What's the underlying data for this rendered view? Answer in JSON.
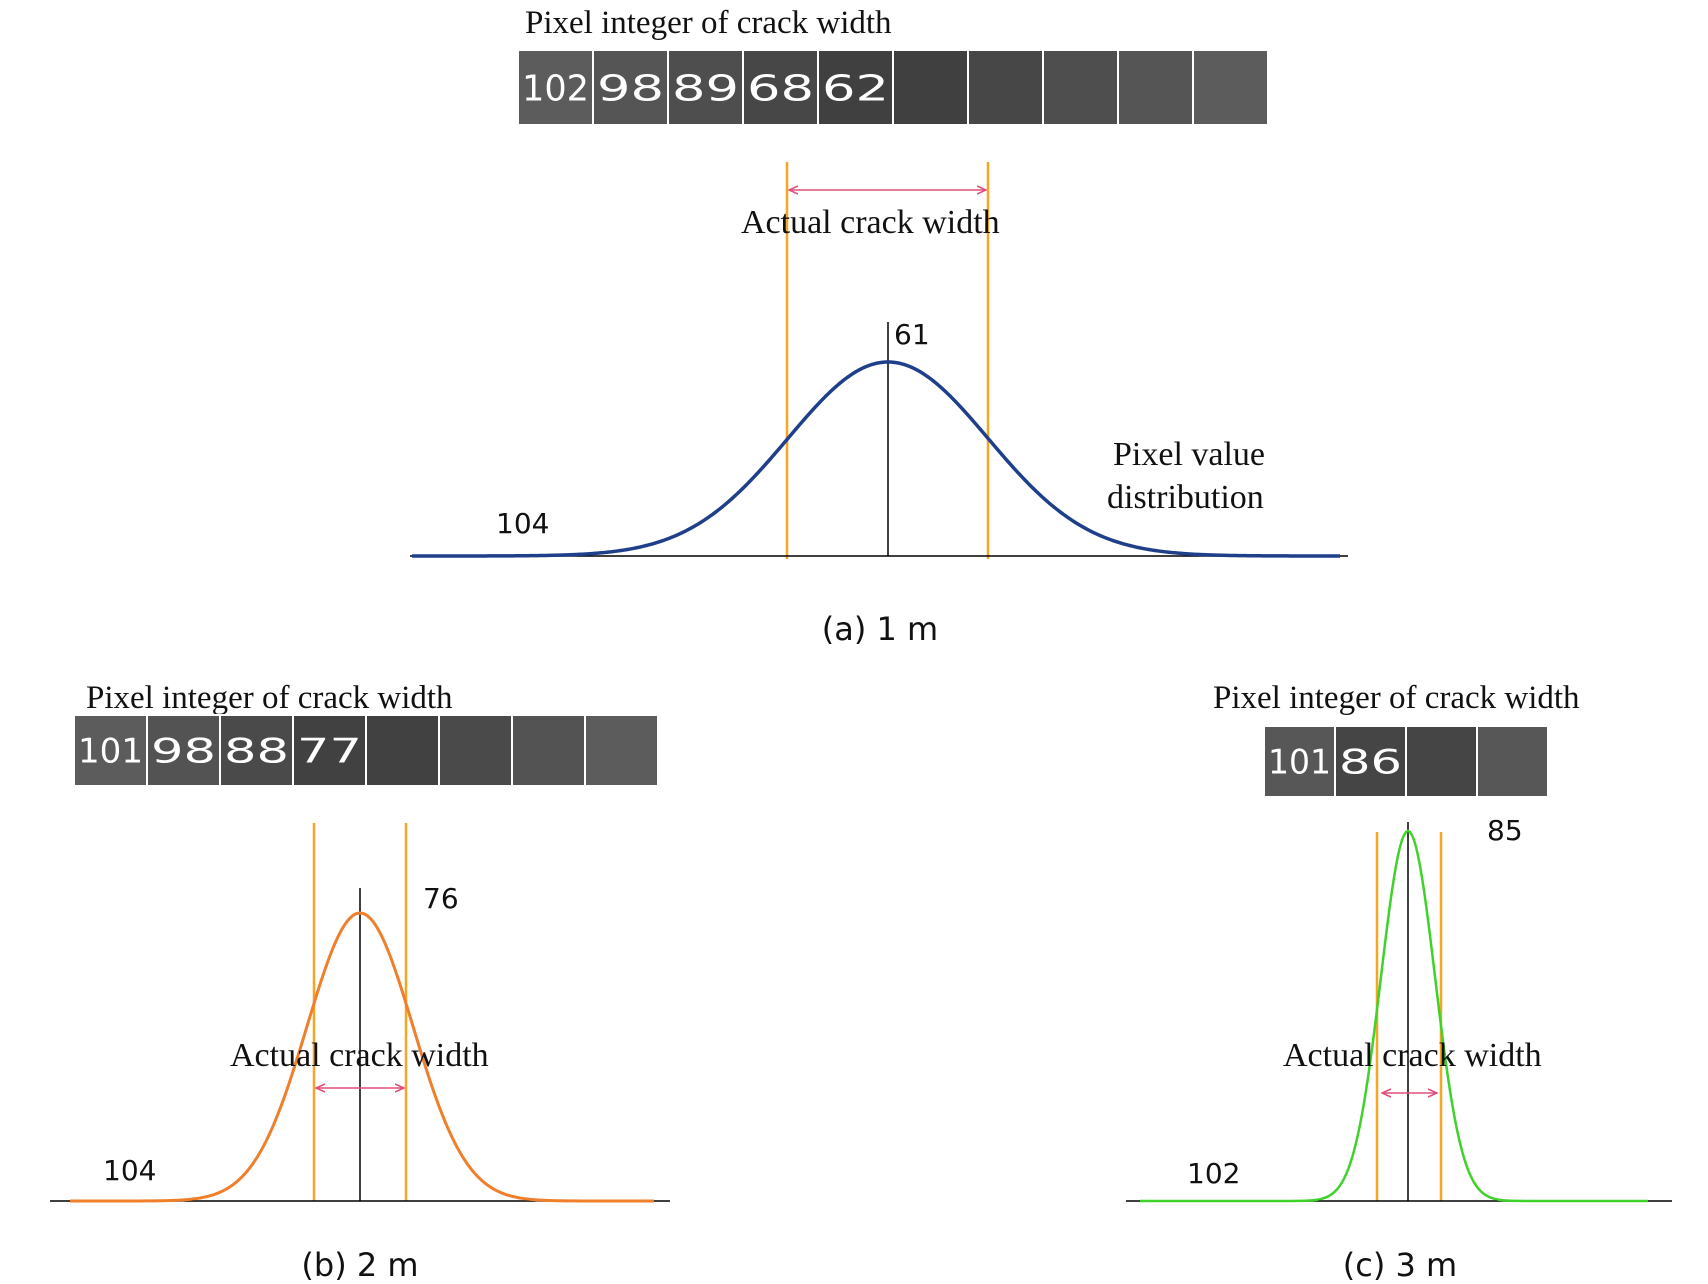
{
  "colors": {
    "cell_fill_light": "#5f5f5f",
    "cell_fill_dark": "#3a3a3a",
    "cell_border": "#ffffff",
    "cell_text": "#ffffff",
    "boundary_line": "#f5a623",
    "width_arrow": "#e0507a",
    "center_line": "#000000",
    "baseline": "#000000"
  },
  "panels": [
    {
      "caption": "(a) 1 m",
      "strip_title": "Pixel integer of crack width",
      "cells": [
        "102",
        "98",
        "89",
        "68",
        "62",
        "",
        "",
        "",
        "",
        ""
      ],
      "peak_label": "61",
      "edge_label": "104",
      "curve_label_line1": "Pixel value",
      "curve_label_line2": "distribution",
      "width_label": "Actual crack width",
      "curve_color": "#1f3f8a",
      "peak_value": 61,
      "edge_value": 104
    },
    {
      "caption": "(b) 2 m",
      "strip_title": "Pixel integer of crack width",
      "cells": [
        "101",
        "98",
        "88",
        "77",
        "",
        "",
        "",
        ""
      ],
      "peak_label": "76",
      "edge_label": "104",
      "width_label": "Actual crack width",
      "curve_color": "#f07f2c",
      "peak_value": 76,
      "edge_value": 104
    },
    {
      "caption": "(c) 3 m",
      "strip_title": "Pixel integer of crack width",
      "cells": [
        "101",
        "86",
        "",
        ""
      ],
      "peak_label": "85",
      "edge_label": "102",
      "width_label": "Actual crack width",
      "curve_color": "#3fd22a",
      "peak_value": 85,
      "edge_value": 102
    }
  ]
}
